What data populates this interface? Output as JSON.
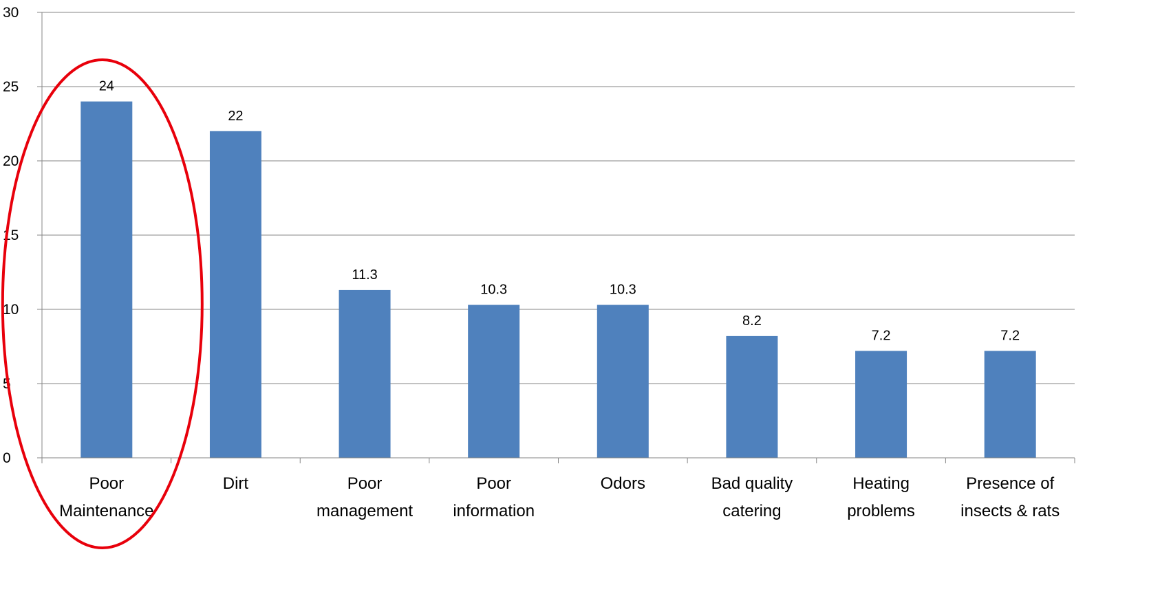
{
  "chart_data": {
    "type": "bar",
    "categories": [
      [
        "Poor",
        "Maintenance"
      ],
      [
        "Dirt"
      ],
      [
        "Poor",
        "management"
      ],
      [
        "Poor",
        "information"
      ],
      [
        "Odors"
      ],
      [
        "Bad quality",
        "catering"
      ],
      [
        "Heating",
        "problems"
      ],
      [
        "Presence of",
        "insects & rats"
      ]
    ],
    "values": [
      24,
      22,
      11.3,
      10.3,
      10.3,
      8.2,
      7.2,
      7.2
    ],
    "data_labels": [
      "24",
      "22",
      "11.3",
      "10.3",
      "10.3",
      "8.2",
      "7.2",
      "7.2"
    ],
    "ylim": [
      0,
      30
    ],
    "yticks": [
      0,
      5,
      10,
      15,
      20,
      25,
      30
    ],
    "title": "",
    "xlabel": "",
    "ylabel": "",
    "grid": true,
    "legend": "none",
    "colors": {
      "bar": "#4f81bd",
      "highlight_ellipse": "#e8000b",
      "gridline": "#868686"
    },
    "annotation": {
      "type": "ellipse",
      "highlighted_category": "Poor Maintenance"
    }
  }
}
